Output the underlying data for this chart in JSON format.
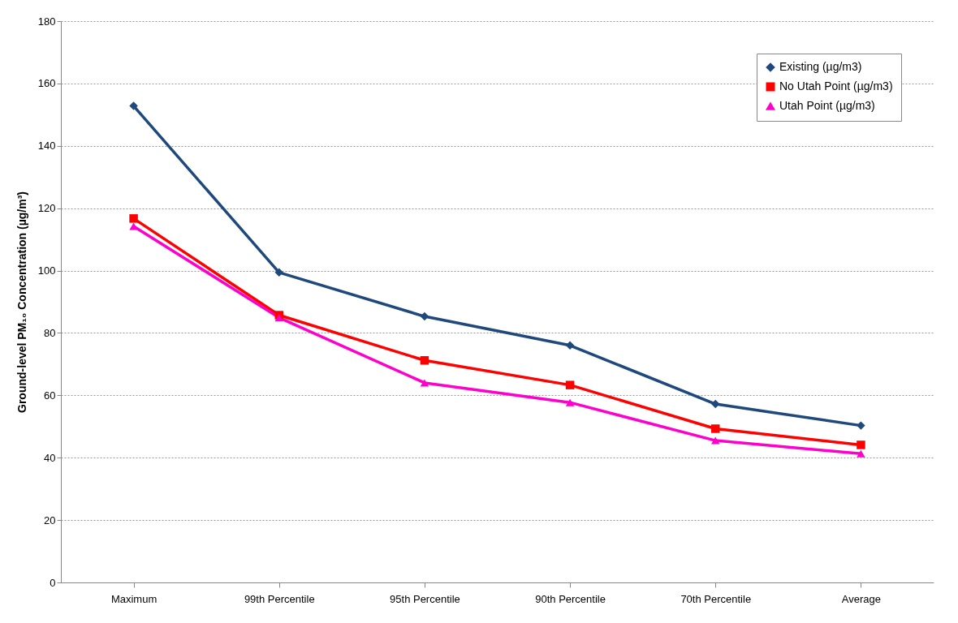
{
  "chart_data": {
    "type": "line",
    "ylabel": "Ground-level PM₁₀ Concentration (µg/m³)",
    "categories": [
      "Maximum",
      "99th Percentile",
      "95th Percentile",
      "90th Percentile",
      "70th Percentile",
      "Average"
    ],
    "series": [
      {
        "name": "Existing (µg/m3)",
        "color": "#1f497d",
        "marker": "diamond",
        "values": [
          152.8,
          99.4,
          85.3,
          76.0,
          57.2,
          50.3
        ]
      },
      {
        "name": "No Utah Point (µg/m3)",
        "color": "#ff0000",
        "marker": "square",
        "values": [
          116.7,
          85.7,
          71.2,
          63.3,
          49.3,
          44.1
        ]
      },
      {
        "name": "Utah Point (µg/m3)",
        "color": "#ff00cc",
        "marker": "triangle",
        "values": [
          114.2,
          84.9,
          64.0,
          57.7,
          45.5,
          41.3
        ]
      }
    ],
    "ylim": [
      0,
      180
    ],
    "yticks": [
      0,
      20,
      40,
      60,
      80,
      100,
      120,
      140,
      160,
      180
    ],
    "grid": "y",
    "legend": "top right",
    "line_style": "solid"
  }
}
